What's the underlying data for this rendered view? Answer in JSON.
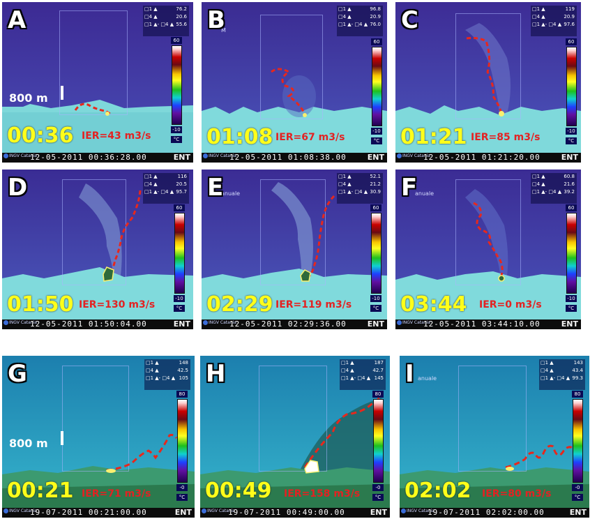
{
  "panels": [
    {
      "letter": "A",
      "time": "00:36",
      "ier": "IER=43 m3/s",
      "timestamp": "12-05-2011 00:36:28.00",
      "logo": "INGV Catania",
      "ent": "ENT",
      "scale": "800 m",
      "l1": "□1 ▲",
      "v1": "76.2",
      "l2": "□4 ▲",
      "v2": "20.6",
      "l3": "□1 ▲- □4 ▲",
      "v3": "55.6",
      "cmax": "60",
      "cmin": "-10",
      "unit": "°C",
      "manuale": ""
    },
    {
      "letter": "B",
      "time": "01:08",
      "ier": "IER=67 m3/s",
      "timestamp": "12-05-2011 01:08:38.00",
      "logo": "INGV Catania",
      "ent": "ENT",
      "scale": "",
      "l1": "□1 ▲",
      "v1": "96.8",
      "l2": "□4 ▲",
      "v2": "20.9",
      "l3": "□1 ▲- □4 ▲",
      "v3": "76.0",
      "cmax": "60",
      "cmin": "-10",
      "unit": "°C",
      "manuale": "M"
    },
    {
      "letter": "C",
      "time": "01:21",
      "ier": "IER=85 m3/s",
      "timestamp": "12-05-2011 01:21:20.00",
      "logo": "INGV Catania",
      "ent": "ENT",
      "scale": "",
      "l1": "□1 ▲",
      "v1": "119",
      "l2": "□4 ▲",
      "v2": "20.9",
      "l3": "□1 ▲- □4 ▲",
      "v3": "97.6",
      "cmax": "60",
      "cmin": "-10",
      "unit": "°C",
      "manuale": ""
    },
    {
      "letter": "D",
      "time": "01:50",
      "ier": "IER=130 m3/s",
      "timestamp": "12-05-2011 01:50:04.00",
      "logo": "INGV Catania",
      "ent": "ENT",
      "scale": "",
      "l1": "□1 ▲",
      "v1": "116",
      "l2": "□4 ▲",
      "v2": "20.5",
      "l3": "□1 ▲- □4 ▲",
      "v3": "95.7",
      "cmax": "60",
      "cmin": "-10",
      "unit": "°C",
      "manuale": ""
    },
    {
      "letter": "E",
      "time": "02:29",
      "ier": "IER=119 m3/s",
      "timestamp": "12-05-2011 02:29:36.00",
      "logo": "INGV Catania",
      "ent": "ENT",
      "scale": "",
      "l1": "□1 ▲",
      "v1": "52.1",
      "l2": "□4 ▲",
      "v2": "21.2",
      "l3": "□1 ▲- □4 ▲",
      "v3": "30.9",
      "cmax": "60",
      "cmin": "-10",
      "unit": "°C",
      "manuale": "anuale"
    },
    {
      "letter": "F",
      "time": "03:44",
      "ier": "IER=0 m3/s",
      "timestamp": "12-05-2011 03:44:10.00",
      "logo": "INGV Catania",
      "ent": "ENT",
      "scale": "",
      "l1": "□1 ▲",
      "v1": "60.8",
      "l2": "□4 ▲",
      "v2": "21.6",
      "l3": "□1 ▲- □4 ▲",
      "v3": "39.2",
      "cmax": "60",
      "cmin": "-10",
      "unit": "°C",
      "manuale": "anuale"
    },
    {
      "letter": "G",
      "time": "00:21",
      "ier": "IER=71 m3/s",
      "timestamp": "19-07-2011 00:21:00.00",
      "logo": "INGV Catania",
      "ent": "ENT",
      "scale": "800 m",
      "l1": "□1 ▲",
      "v1": "148",
      "l2": "□4 ▲",
      "v2": "42.5",
      "l3": "□1 ▲- □4 ▲",
      "v3": "105",
      "cmax": "80",
      "cmin": "-0",
      "unit": "°C",
      "manuale": ""
    },
    {
      "letter": "H",
      "time": "00:49",
      "ier": "IER=158 m3/s",
      "timestamp": "19-07-2011 00:49:00.00",
      "logo": "INGV Catania",
      "ent": "ENT",
      "scale": "",
      "l1": "□1 ▲",
      "v1": "187",
      "l2": "□4 ▲",
      "v2": "42.7",
      "l3": "□1 ▲- □4 ▲",
      "v3": "145",
      "cmax": "80",
      "cmin": "-0",
      "unit": "°C",
      "manuale": ""
    },
    {
      "letter": "I",
      "time": "02:02",
      "ier": "IER=80 m3/s",
      "timestamp": "19-07-2011 02:02:00.00",
      "logo": "INGV Catania",
      "ent": "ENT",
      "scale": "",
      "l1": "□1 ▲",
      "v1": "143",
      "l2": "□4 ▲",
      "v2": "43.4",
      "l3": "□1 ▲- □4 ▲",
      "v3": "99.3",
      "cmax": "80",
      "cmin": "-0",
      "unit": "°C",
      "manuale": "anuale"
    }
  ]
}
